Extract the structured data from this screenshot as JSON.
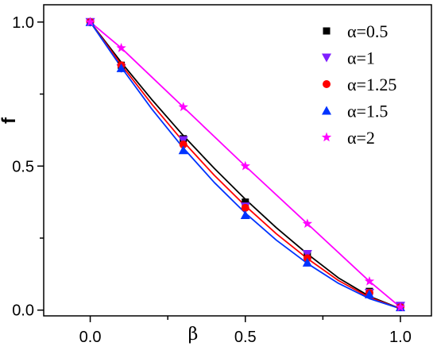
{
  "chart_data": {
    "type": "line",
    "title": "",
    "xlabel": "β",
    "ylabel": "f",
    "xlim": [
      -0.15,
      1.1
    ],
    "ylim": [
      -0.02,
      1.06
    ],
    "xticks": [
      0.0,
      0.5,
      1.0
    ],
    "xtick_labels": [
      "0.0",
      "0.5",
      "1.0"
    ],
    "xminor_ticks": [
      0.25,
      0.75
    ],
    "yticks": [
      0.0,
      0.5,
      1.0
    ],
    "ytick_labels": [
      "0.0",
      "0.5",
      "1.0"
    ],
    "yminor_ticks": [
      0.25,
      0.75
    ],
    "grid": false,
    "legend_position": "top-right",
    "series": [
      {
        "name": "α=0.5",
        "color": "#000000",
        "marker": "square",
        "x": [
          0.0,
          0.1,
          0.3,
          0.5,
          0.7,
          0.9,
          1.0
        ],
        "y": [
          1.0,
          0.85,
          0.595,
          0.375,
          0.195,
          0.065,
          0.015
        ],
        "curve": [
          [
            0.0,
            1.0
          ],
          [
            0.1,
            0.86
          ],
          [
            0.2,
            0.729
          ],
          [
            0.3,
            0.606
          ],
          [
            0.4,
            0.492
          ],
          [
            0.5,
            0.385
          ],
          [
            0.6,
            0.286
          ],
          [
            0.7,
            0.195
          ],
          [
            0.8,
            0.112
          ],
          [
            0.9,
            0.048
          ],
          [
            1.0,
            0.005
          ]
        ]
      },
      {
        "name": "α=1",
        "color": "#7f1fff",
        "marker": "triangle-down",
        "x": [
          0.0,
          0.1,
          0.3,
          0.5,
          0.7,
          0.9,
          1.0
        ],
        "y": [
          1.0,
          0.84,
          0.59,
          0.36,
          0.195,
          0.06,
          0.015
        ],
        "curve": []
      },
      {
        "name": "α=1.25",
        "color": "#ff0000",
        "marker": "circle",
        "x": [
          0.0,
          0.1,
          0.3,
          0.5,
          0.7,
          0.9,
          1.0
        ],
        "y": [
          1.0,
          0.85,
          0.575,
          0.355,
          0.18,
          0.06,
          0.01
        ],
        "curve": [
          [
            0.0,
            1.0
          ],
          [
            0.1,
            0.852
          ],
          [
            0.2,
            0.713
          ],
          [
            0.3,
            0.585
          ],
          [
            0.4,
            0.468
          ],
          [
            0.5,
            0.362
          ],
          [
            0.6,
            0.265
          ],
          [
            0.7,
            0.179
          ],
          [
            0.8,
            0.103
          ],
          [
            0.9,
            0.044
          ],
          [
            1.0,
            0.005
          ]
        ]
      },
      {
        "name": "α=1.5",
        "color": "#0033ff",
        "marker": "triangle-up",
        "x": [
          0.0,
          0.1,
          0.3,
          0.5,
          0.7,
          0.9,
          1.0
        ],
        "y": [
          1.0,
          0.84,
          0.555,
          0.33,
          0.165,
          0.055,
          0.01
        ],
        "curve": [
          [
            0.0,
            1.0
          ],
          [
            0.1,
            0.843
          ],
          [
            0.2,
            0.696
          ],
          [
            0.3,
            0.563
          ],
          [
            0.4,
            0.443
          ],
          [
            0.5,
            0.337
          ],
          [
            0.6,
            0.243
          ],
          [
            0.7,
            0.162
          ],
          [
            0.8,
            0.093
          ],
          [
            0.9,
            0.04
          ],
          [
            1.0,
            0.005
          ]
        ]
      },
      {
        "name": "α=2",
        "color": "#ff00ff",
        "marker": "star",
        "x": [
          0.0,
          0.1,
          0.3,
          0.5,
          0.7,
          0.9,
          1.0
        ],
        "y": [
          1.0,
          0.91,
          0.705,
          0.5,
          0.3,
          0.1,
          0.01
        ],
        "curve": [
          [
            0.0,
            1.0
          ],
          [
            0.1,
            0.91
          ],
          [
            0.3,
            0.705
          ],
          [
            0.5,
            0.5
          ],
          [
            0.7,
            0.3
          ],
          [
            0.9,
            0.1
          ],
          [
            1.0,
            0.01
          ]
        ]
      }
    ]
  }
}
